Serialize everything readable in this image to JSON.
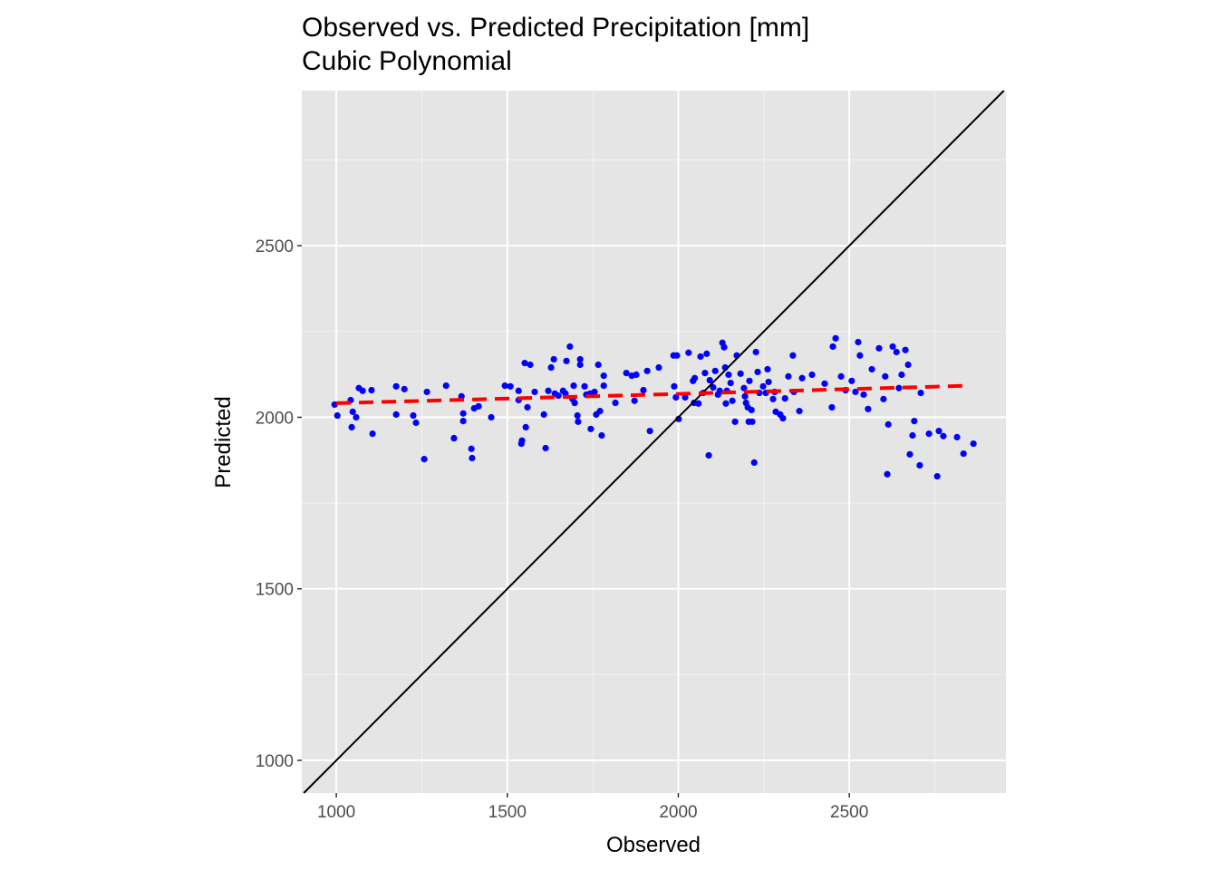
{
  "chart_data": {
    "type": "scatter",
    "title": "Observed vs. Predicted Precipitation [mm]",
    "subtitle": "Cubic Polynomial",
    "x_label": "Observed",
    "y_label": "Predicted",
    "xlim": [
      899,
      2958
    ],
    "ylim": [
      905,
      2952
    ],
    "xticks": [
      1000,
      1500,
      2000,
      2500
    ],
    "yticks": [
      1000,
      1500,
      2000,
      2500
    ],
    "x_minor_grid": [
      1250,
      1750,
      2250,
      2750
    ],
    "y_minor_grid": [
      1250,
      1750,
      2250,
      2750
    ],
    "grid": true,
    "identity_line": true,
    "identity_color": "#000000",
    "series": [
      {
        "color": "#0000ff",
        "x": [
          995,
          1003,
          1042,
          1048,
          1045,
          1058,
          1066,
          1077,
          1103,
          1106,
          1175,
          1175,
          1199,
          1225,
          1233,
          1257,
          1265,
          1321,
          1344,
          1366,
          1371,
          1371,
          1395,
          1397,
          1403,
          1416,
          1453,
          1493,
          1509,
          1533,
          1533,
          1541,
          1543,
          1551,
          1554,
          1559,
          1567,
          1580,
          1607,
          1612,
          1620,
          1628,
          1636,
          1639,
          1649,
          1663,
          1670,
          1673,
          1683,
          1691,
          1694,
          1697,
          1705,
          1707,
          1713,
          1713,
          1726,
          1731,
          1742,
          1744,
          1755,
          1760,
          1766,
          1771,
          1776,
          1782,
          1782,
          1816,
          1848,
          1864,
          1872,
          1877,
          1898,
          1909,
          1917,
          1943,
          1988,
          1993,
          1986,
          1996,
          2001,
          2020,
          2030,
          2046,
          2043,
          2048,
          2059,
          2065,
          2073,
          2078,
          2083,
          2089,
          2092,
          2102,
          2108,
          2116,
          2121,
          2129,
          2134,
          2137,
          2139,
          2142,
          2147,
          2153,
          2158,
          2166,
          2171,
          2182,
          2192,
          2195,
          2198,
          2203,
          2206,
          2208,
          2214,
          2216,
          2222,
          2227,
          2232,
          2237,
          2248,
          2256,
          2261,
          2264,
          2277,
          2282,
          2285,
          2298,
          2306,
          2312,
          2322,
          2335,
          2338,
          2354,
          2362,
          2391,
          2428,
          2449,
          2452,
          2460,
          2476,
          2489,
          2507,
          2518,
          2526,
          2531,
          2542,
          2555,
          2566,
          2587,
          2600,
          2605,
          2614,
          2611,
          2627,
          2638,
          2645,
          2653,
          2664,
          2672,
          2677,
          2685,
          2690,
          2706,
          2709,
          2733,
          2757,
          2762,
          2775,
          2815,
          2834,
          2863
        ],
        "values": [
          2037,
          2005,
          2050,
          2016,
          1971,
          2000,
          2085,
          2077,
          2079,
          1952,
          2090,
          2008,
          2082,
          2005,
          1984,
          1878,
          2074,
          2092,
          1939,
          2061,
          1989,
          2011,
          1908,
          1881,
          2026,
          2032,
          2000,
          2092,
          2090,
          2077,
          2050,
          1923,
          1932,
          2158,
          1971,
          2029,
          2153,
          2074,
          2008,
          1910,
          2077,
          2145,
          2169,
          2069,
          2063,
          2077,
          2069,
          2164,
          2206,
          2053,
          2092,
          2042,
          2005,
          1987,
          2169,
          2153,
          2090,
          2066,
          2069,
          1966,
          2074,
          2008,
          2153,
          2018,
          1947,
          2121,
          2092,
          2042,
          2129,
          2121,
          2048,
          2124,
          2079,
          2135,
          1960,
          2145,
          2090,
          2058,
          2180,
          2180,
          1995,
          2058,
          2188,
          2042,
          2106,
          2114,
          2040,
          2177,
          2071,
          2129,
          2185,
          1889,
          2108,
          2087,
          2135,
          2066,
          2077,
          2217,
          2204,
          2145,
          2040,
          2077,
          2124,
          2100,
          2048,
          1987,
          2180,
          2127,
          2085,
          2061,
          2042,
          2029,
          1987,
          2106,
          2021,
          1987,
          1868,
          2190,
          2132,
          2071,
          2090,
          2071,
          2140,
          2103,
          2053,
          2074,
          2016,
          2008,
          1997,
          2055,
          2119,
          2180,
          2074,
          2018,
          2114,
          2124,
          2098,
          2029,
          2206,
          2230,
          2119,
          2079,
          2106,
          2074,
          2219,
          2180,
          2066,
          2024,
          2140,
          2201,
          2053,
          2119,
          1979,
          1834,
          2206,
          2190,
          2085,
          2124,
          2196,
          2153,
          1892,
          1947,
          1989,
          1860,
          2071,
          1952,
          1828,
          1960,
          1945,
          1942,
          1894,
          1923
        ]
      }
    ],
    "fit_line": {
      "color": "#ff0000",
      "dashed": true,
      "x": [
        1000,
        1925,
        2850
      ],
      "values": [
        2041,
        2066,
        2092
      ]
    }
  }
}
